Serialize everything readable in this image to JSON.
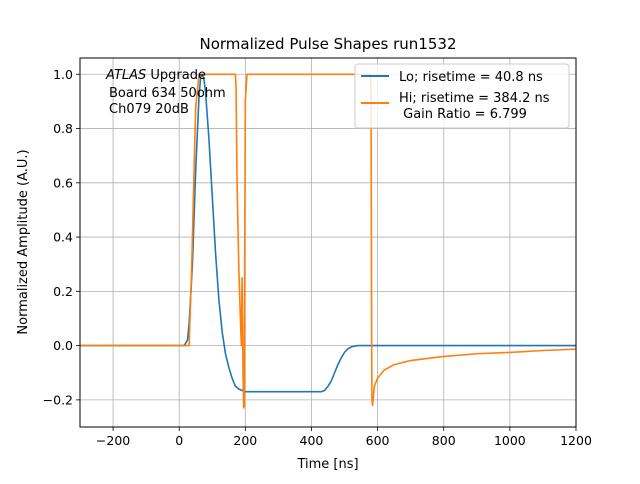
{
  "chart_data": {
    "type": "line",
    "title": "Normalized Pulse Shapes run1532",
    "xlabel": "Time [ns]",
    "ylabel": "Normalized Amplitude (A.U.)",
    "xlim": [
      -300,
      1200
    ],
    "ylim": [
      -0.3,
      1.06
    ],
    "grid": true,
    "legend_position": "top-right",
    "x_ticks": [
      -200,
      0,
      200,
      400,
      600,
      800,
      1000,
      1200
    ],
    "y_ticks": [
      -0.2,
      0.0,
      0.2,
      0.4,
      0.6,
      0.8,
      1.0
    ],
    "x_tick_labels": [
      "−200",
      "0",
      "200",
      "400",
      "600",
      "800",
      "1000",
      "1200"
    ],
    "y_tick_labels": [
      "−0.2",
      "0.0",
      "0.2",
      "0.4",
      "0.6",
      "0.8",
      "1.0"
    ],
    "annotation": {
      "line1_italic": "ATLAS",
      "line1_rest": " Upgrade",
      "line2": "Board 634 50ohm",
      "line3": "Ch079 20dB"
    },
    "series": [
      {
        "name": "Lo; risetime = 40.8 ns",
        "color": "#1f77b4",
        "x": [
          -300,
          0,
          15,
          25,
          30,
          40,
          50,
          60,
          65,
          70,
          75,
          80,
          90,
          100,
          110,
          120,
          130,
          140,
          150,
          160,
          170,
          180,
          190,
          200,
          230,
          300,
          400,
          430,
          440,
          450,
          460,
          470,
          480,
          490,
          500,
          510,
          520,
          530,
          540,
          560,
          580,
          600,
          700,
          800,
          1000,
          1200
        ],
        "y": [
          0.0,
          0.0,
          0.0,
          0.02,
          0.08,
          0.3,
          0.65,
          0.92,
          0.99,
          1.0,
          0.98,
          0.93,
          0.76,
          0.55,
          0.34,
          0.17,
          0.05,
          -0.03,
          -0.08,
          -0.12,
          -0.15,
          -0.16,
          -0.165,
          -0.17,
          -0.17,
          -0.17,
          -0.17,
          -0.17,
          -0.165,
          -0.15,
          -0.13,
          -0.1,
          -0.07,
          -0.045,
          -0.025,
          -0.012,
          -0.005,
          -0.002,
          0.0,
          0.0,
          0.0,
          0.0,
          0.0,
          0.0,
          0.0,
          0.0
        ]
      },
      {
        "name": "Hi; risetime = 384.2 ns\n Gain Ratio = 6.799",
        "color": "#ff7f0e",
        "x": [
          -300,
          0,
          30,
          38,
          45,
          50,
          60,
          70,
          100,
          150,
          170,
          172,
          175,
          180,
          185,
          188,
          190,
          192,
          193,
          195,
          197,
          198,
          200,
          205,
          215,
          230,
          300,
          400,
          500,
          578,
          580,
          581,
          582,
          583,
          585,
          590,
          600,
          620,
          650,
          700,
          800,
          900,
          1000,
          1100,
          1200
        ],
        "y": [
          0.0,
          0.0,
          0.0,
          0.3,
          0.65,
          0.88,
          1.0,
          1.0,
          1.0,
          1.0,
          1.0,
          0.95,
          0.6,
          0.3,
          0.1,
          0.0,
          0.25,
          0.05,
          -0.1,
          -0.23,
          -0.22,
          0.3,
          0.9,
          1.0,
          1.0,
          1.0,
          1.0,
          1.0,
          1.0,
          1.0,
          0.95,
          0.5,
          0.0,
          -0.2,
          -0.22,
          -0.15,
          -0.12,
          -0.09,
          -0.07,
          -0.055,
          -0.04,
          -0.03,
          -0.025,
          -0.018,
          -0.013
        ]
      }
    ]
  }
}
